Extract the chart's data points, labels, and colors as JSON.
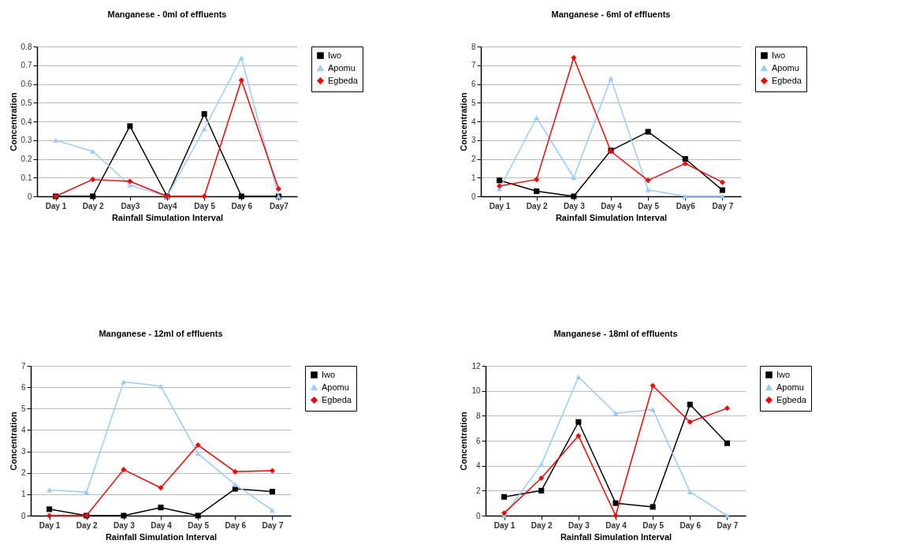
{
  "chart_data": [
    {
      "type": "line",
      "title": "Manganese - 0ml of effluents",
      "xlabel": "Rainfall Simulation Interval",
      "ylabel": "Concentration",
      "categories": [
        "Day 1",
        "Day 2",
        "Day3",
        "Day4",
        "Day 5",
        "Day 6",
        "Day7"
      ],
      "ylim": [
        0,
        0.8
      ],
      "yticks": [
        0,
        0.1,
        0.2,
        0.3,
        0.4,
        0.5,
        0.6,
        0.7,
        0.8
      ],
      "grid": "y",
      "legend": "right",
      "series": [
        {
          "name": "Iwo",
          "color": "#000000",
          "marker": "square",
          "values": [
            0,
            0,
            0.375,
            0,
            0.44,
            0,
            0
          ]
        },
        {
          "name": "Apomu",
          "color": "#99ccff",
          "marker": "triangle",
          "values": [
            0.3,
            0.24,
            0.06,
            0,
            0.36,
            0.74,
            0
          ]
        },
        {
          "name": "Egbeda",
          "color": "#ff0000",
          "marker": "diamond",
          "values": [
            0,
            0.09,
            0.08,
            0,
            0,
            0.62,
            0.04
          ]
        }
      ]
    },
    {
      "type": "line",
      "title": "Manganese - 6ml of effluents",
      "xlabel": "Rainfall Simulation Interval",
      "ylabel": "Concentration",
      "categories": [
        "Day 1",
        "Day 2",
        "Day 3",
        "Day 4",
        "Day 5",
        "Day6",
        "Day 7"
      ],
      "ylim": [
        0,
        8
      ],
      "yticks": [
        0,
        1,
        2,
        3,
        4,
        5,
        6,
        7,
        8
      ],
      "grid": "y",
      "legend": "right",
      "series": [
        {
          "name": "Iwo",
          "color": "#000000",
          "marker": "square",
          "values": [
            0.85,
            0.27,
            0,
            2.45,
            3.45,
            2.0,
            0.33
          ]
        },
        {
          "name": "Apomu",
          "color": "#99ccff",
          "marker": "triangle",
          "values": [
            0.4,
            4.2,
            1.0,
            6.3,
            0.35,
            0,
            0
          ]
        },
        {
          "name": "Egbeda",
          "color": "#ff0000",
          "marker": "diamond",
          "values": [
            0.55,
            0.9,
            7.4,
            2.4,
            0.85,
            1.75,
            0.75
          ]
        }
      ]
    },
    {
      "type": "line",
      "title": "Manganese - 12ml of effluents",
      "xlabel": "Rainfall Simulation Interval",
      "ylabel": "Concentration",
      "categories": [
        "Day 1",
        "Day 2",
        "Day 3",
        "Day 4",
        "Day 5",
        "Day 6",
        "Day 7"
      ],
      "ylim": [
        0,
        7
      ],
      "yticks": [
        0,
        1,
        2,
        3,
        4,
        5,
        6,
        7
      ],
      "grid": "y",
      "legend": "right",
      "series": [
        {
          "name": "Iwo",
          "color": "#000000",
          "marker": "square",
          "values": [
            0.3,
            0,
            0,
            0.38,
            0,
            1.25,
            1.12
          ]
        },
        {
          "name": "Apomu",
          "color": "#99ccff",
          "marker": "triangle",
          "values": [
            1.2,
            1.1,
            6.25,
            6.05,
            2.9,
            1.45,
            0.25
          ]
        },
        {
          "name": "Egbeda",
          "color": "#ff0000",
          "marker": "diamond",
          "values": [
            0,
            0,
            2.15,
            1.3,
            3.3,
            2.05,
            2.1
          ]
        }
      ]
    },
    {
      "type": "line",
      "title": "Manganese - 18ml of effluents",
      "xlabel": "Rainfall Simulation Interval",
      "ylabel": "Concentration",
      "categories": [
        "Day 1",
        "Day 2",
        "Day 3",
        "Day 4",
        "Day 5",
        "Day 6",
        "Day 7"
      ],
      "ylim": [
        0,
        12
      ],
      "yticks": [
        0,
        2,
        4,
        6,
        8,
        10,
        12
      ],
      "grid": "y",
      "legend": "right",
      "series": [
        {
          "name": "Iwo",
          "color": "#000000",
          "marker": "square",
          "values": [
            1.5,
            2.0,
            7.5,
            1.0,
            0.7,
            8.9,
            5.8
          ]
        },
        {
          "name": "Apomu",
          "color": "#99ccff",
          "marker": "triangle",
          "values": [
            0,
            4.1,
            11.1,
            8.2,
            8.5,
            1.9,
            0
          ]
        },
        {
          "name": "Egbeda",
          "color": "#ff0000",
          "marker": "diamond",
          "values": [
            0.2,
            3.0,
            6.4,
            0,
            10.4,
            7.5,
            8.6
          ]
        }
      ]
    }
  ]
}
